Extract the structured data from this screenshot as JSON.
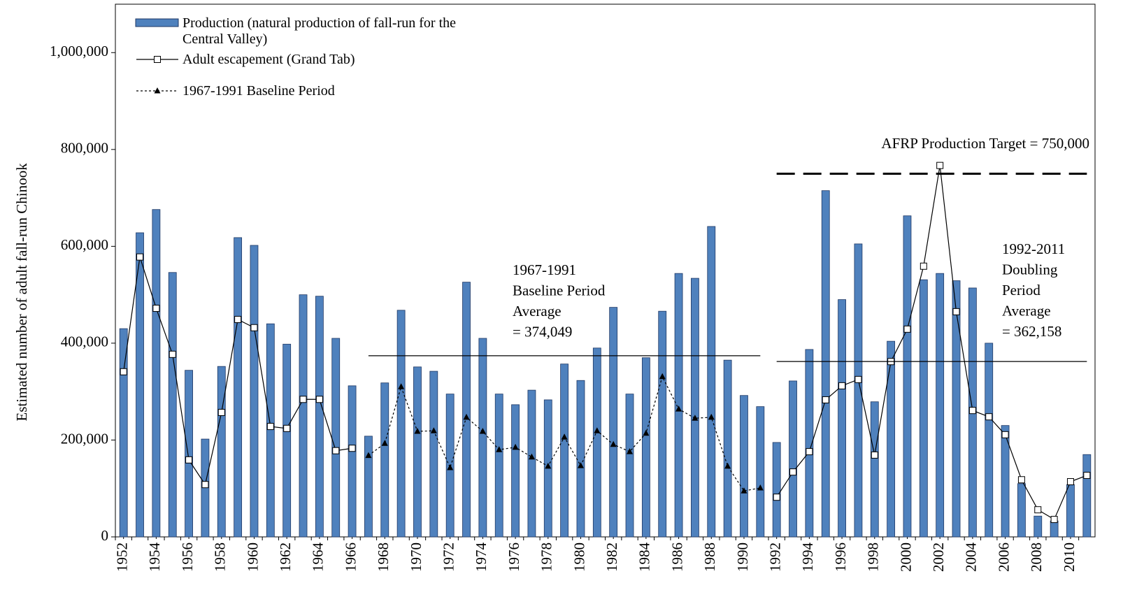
{
  "chart_data": {
    "type": "bar",
    "y_label": "Estimated number of adult fall-run Chinook",
    "x": [
      1952,
      1953,
      1954,
      1955,
      1956,
      1957,
      1958,
      1959,
      1960,
      1961,
      1962,
      1963,
      1964,
      1965,
      1966,
      1967,
      1968,
      1969,
      1970,
      1971,
      1972,
      1973,
      1974,
      1975,
      1976,
      1977,
      1978,
      1979,
      1980,
      1981,
      1982,
      1983,
      1984,
      1985,
      1986,
      1987,
      1988,
      1989,
      1990,
      1991,
      1992,
      1993,
      1994,
      1995,
      1996,
      1997,
      1998,
      1999,
      2000,
      2001,
      2002,
      2003,
      2004,
      2005,
      2006,
      2007,
      2008,
      2009,
      2010,
      2011
    ],
    "xlim": [
      1951.5,
      2011.5
    ],
    "xticks": [
      1952,
      1954,
      1956,
      1958,
      1960,
      1962,
      1964,
      1966,
      1968,
      1970,
      1972,
      1974,
      1976,
      1978,
      1980,
      1982,
      1984,
      1986,
      1988,
      1990,
      1992,
      1994,
      1996,
      1998,
      2000,
      2002,
      2004,
      2006,
      2008,
      2010
    ],
    "ylim": [
      0,
      1100000
    ],
    "yticks": [
      0,
      {
        "value": 200000,
        "label": "200,000"
      },
      {
        "value": 400000,
        "label": "400,000"
      },
      {
        "value": 600000,
        "label": "600,000"
      },
      {
        "value": 800000,
        "label": "800,000"
      },
      {
        "value": 1000000,
        "label": "1,000,000"
      }
    ],
    "series": [
      {
        "name": "Production (natural production of fall-run for the Central Valley)",
        "type": "bar",
        "color": "#4f81bd",
        "values": [
          430000,
          628000,
          676000,
          546000,
          344000,
          202000,
          352000,
          618000,
          602000,
          440000,
          398000,
          500000,
          497000,
          410000,
          312000,
          208000,
          318000,
          468000,
          351000,
          342000,
          295000,
          526000,
          410000,
          295000,
          273000,
          303000,
          283000,
          357000,
          323000,
          390000,
          474000,
          295000,
          370000,
          466000,
          544000,
          534000,
          641000,
          365000,
          292000,
          269000,
          195000,
          322000,
          387000,
          715000,
          490000,
          605000,
          279000,
          404000,
          663000,
          531000,
          544000,
          529000,
          514000,
          400000,
          230000,
          110000,
          43000,
          33000,
          108000,
          170000
        ]
      },
      {
        "name": "Adult escapement (Grand Tab)",
        "type": "line",
        "marker": "square",
        "dash": "solid",
        "color": "#000000",
        "values": [
          341000,
          578000,
          472000,
          377000,
          159000,
          108000,
          257000,
          449000,
          432000,
          228000,
          224000,
          284000,
          284000,
          178000,
          183000,
          null,
          null,
          null,
          null,
          null,
          null,
          null,
          null,
          null,
          null,
          null,
          null,
          null,
          null,
          null,
          null,
          null,
          null,
          null,
          null,
          null,
          null,
          null,
          null,
          null,
          82000,
          134000,
          176000,
          283000,
          312000,
          325000,
          169000,
          362000,
          429000,
          559000,
          767000,
          465000,
          261000,
          248000,
          211000,
          118000,
          56000,
          36000,
          114000,
          127000
        ]
      },
      {
        "name": "1967-1991 Baseline Period",
        "type": "line",
        "marker": "triangle",
        "dash": "dashed",
        "color": "#000000",
        "values": [
          null,
          null,
          null,
          null,
          null,
          null,
          null,
          null,
          null,
          null,
          null,
          null,
          null,
          null,
          null,
          168000,
          193000,
          310000,
          218000,
          219000,
          143000,
          247000,
          218000,
          180000,
          185000,
          165000,
          146000,
          206000,
          147000,
          219000,
          191000,
          176000,
          214000,
          331000,
          264000,
          245000,
          247000,
          146000,
          95000,
          101000,
          null,
          null,
          null,
          null,
          null,
          null,
          null,
          null,
          null,
          null,
          null,
          null,
          null,
          null,
          null,
          null,
          null,
          null,
          null,
          null
        ]
      }
    ],
    "reference_lines": [
      {
        "value": 374049,
        "x": [
          1967,
          1991
        ],
        "dash": "solid",
        "label": [
          "1967-1991",
          "Baseline Period",
          "Average",
          "= 374,049"
        ]
      },
      {
        "value": 362158,
        "x": [
          1992,
          2011
        ],
        "dash": "solid",
        "label": [
          "1992-2011",
          "Doubling",
          "Period",
          "Average",
          "= 362,158"
        ]
      },
      {
        "value": 750000,
        "x": [
          1992,
          2011
        ],
        "dash": "dashed",
        "label": [
          "AFRP Production Target = 750,000"
        ]
      }
    ]
  }
}
